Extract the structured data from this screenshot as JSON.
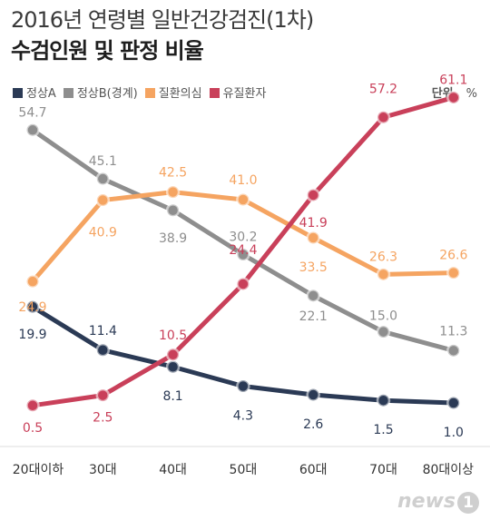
{
  "title_line1": "2016년 연령별 일반건강검진(1차)",
  "title_line2": "수검인원 및 판정 비율",
  "unit_label": "단위",
  "unit_symbol": "%",
  "logo": {
    "text": "news",
    "mark": "1"
  },
  "chart_data": {
    "type": "line",
    "categories": [
      "20대이하",
      "30대",
      "40대",
      "50대",
      "60대",
      "70대",
      "80대이상"
    ],
    "series": [
      {
        "name": "정상A",
        "color": "#2b3a55",
        "values": [
          19.9,
          11.4,
          8.1,
          4.3,
          2.6,
          1.5,
          1.0
        ]
      },
      {
        "name": "정상B(경계)",
        "color": "#8e8e8e",
        "values": [
          54.7,
          45.1,
          38.9,
          30.2,
          22.1,
          15.0,
          11.3
        ]
      },
      {
        "name": "질환의심",
        "color": "#f5a461",
        "values": [
          24.9,
          40.9,
          42.5,
          41.0,
          33.5,
          26.3,
          26.6
        ]
      },
      {
        "name": "유질환자",
        "color": "#c9405a",
        "values": [
          0.5,
          2.5,
          10.5,
          24.4,
          41.9,
          57.2,
          61.1
        ]
      }
    ],
    "ylim": [
      0,
      65
    ],
    "grid": false,
    "legend": "top-left"
  }
}
